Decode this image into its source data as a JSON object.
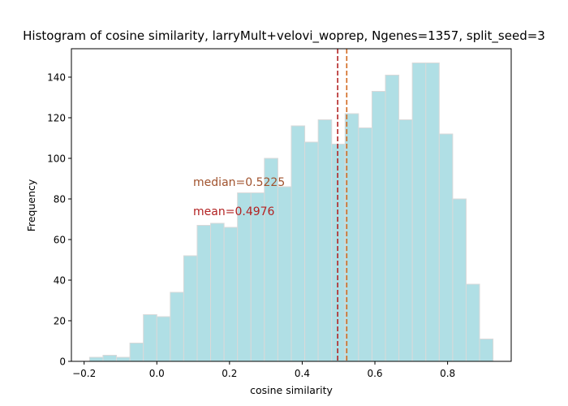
{
  "chart_data": {
    "type": "bar",
    "title": "Histogram of cosine similarity, larryMult+velovi_woprep, Ngenes=1357, split_seed=3",
    "xlabel": "cosine similarity",
    "ylabel": "Frequency",
    "xlim": [
      -0.235,
      0.975
    ],
    "ylim": [
      0,
      154
    ],
    "xticks": [
      -0.2,
      0.0,
      0.2,
      0.4,
      0.6,
      0.8
    ],
    "xtick_labels": [
      "−0.2",
      "0.0",
      "0.2",
      "0.4",
      "0.6",
      "0.8"
    ],
    "yticks": [
      0,
      20,
      40,
      60,
      80,
      100,
      120,
      140
    ],
    "ytick_labels": [
      "0",
      "20",
      "40",
      "60",
      "80",
      "100",
      "120",
      "140"
    ],
    "bin_edges": [
      -0.185,
      -0.148,
      -0.111,
      -0.074,
      -0.037,
      0.0,
      0.037,
      0.074,
      0.111,
      0.148,
      0.185,
      0.222,
      0.259,
      0.296,
      0.333,
      0.37,
      0.407,
      0.444,
      0.481,
      0.518,
      0.555,
      0.592,
      0.629,
      0.666,
      0.703,
      0.74,
      0.777,
      0.814,
      0.851,
      0.888,
      0.925
    ],
    "counts": [
      2,
      3,
      2,
      9,
      23,
      22,
      34,
      52,
      67,
      68,
      66,
      83,
      83,
      100,
      86,
      116,
      108,
      119,
      107,
      122,
      115,
      133,
      141,
      119,
      147,
      147,
      112,
      80,
      38,
      11
    ],
    "bar_color": "#b0dfe5",
    "bar_edge_color": "#d9d9d9",
    "reference_lines": [
      {
        "label": "mean=0.4976",
        "value": 0.4976,
        "color": "#b22222",
        "text_y": 74
      },
      {
        "label": "median=0.5225",
        "value": 0.5225,
        "color": "#d2691e",
        "text_color": "#a0522d",
        "text_y": 88.5
      }
    ],
    "annotation_x": 0.1,
    "grid": false,
    "legend": "none"
  }
}
